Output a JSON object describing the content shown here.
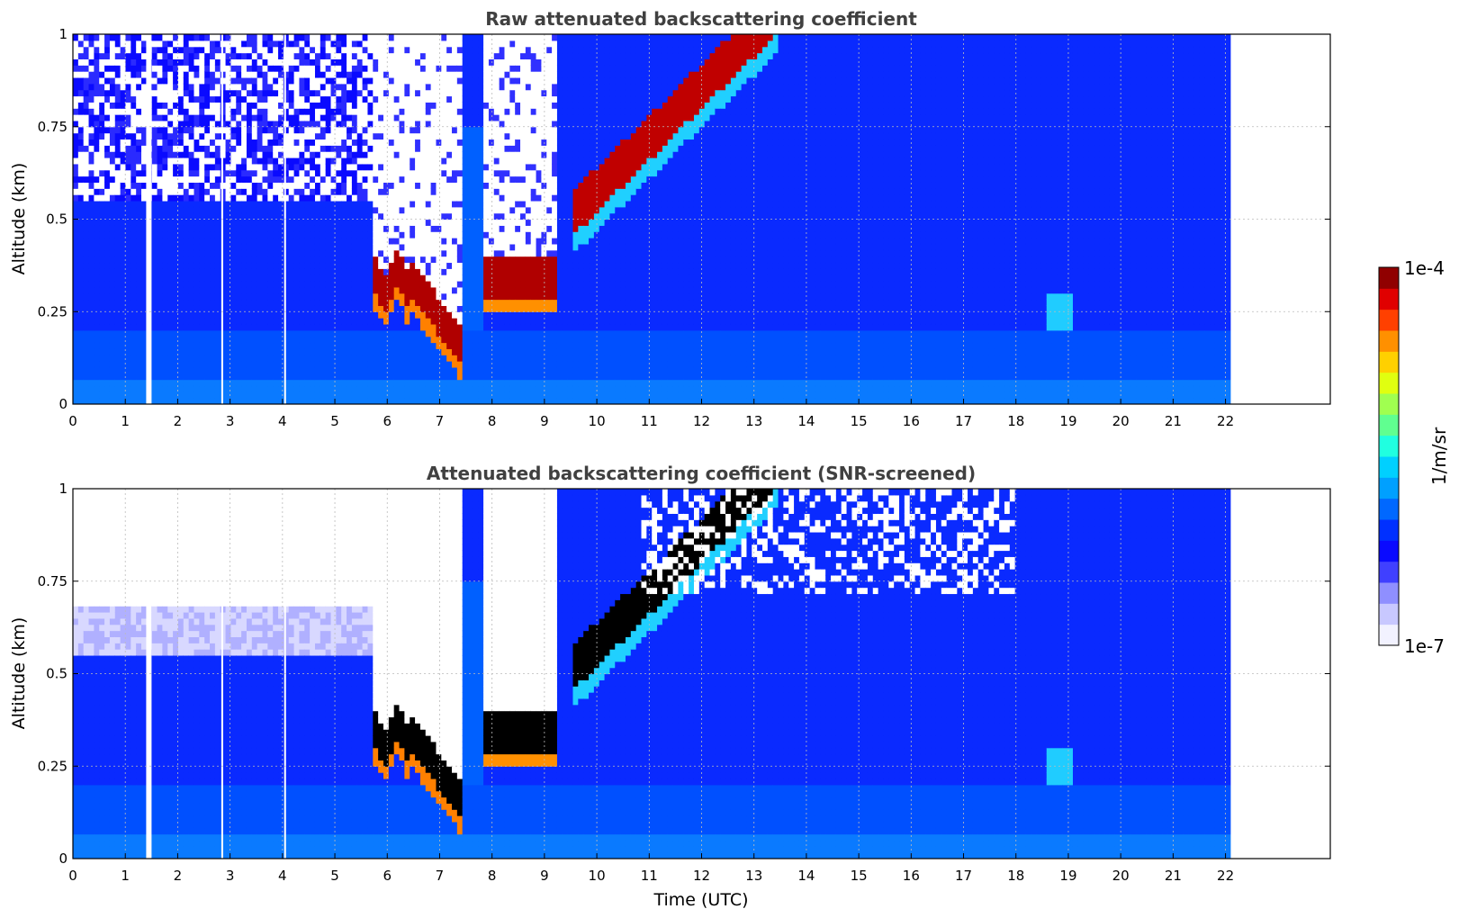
{
  "chart_data": [
    {
      "type": "heatmap",
      "title": "Raw attenuated backscattering coefficient",
      "xlabel": "",
      "ylabel": "Altitude (km)",
      "xlim": [
        0,
        24
      ],
      "ylim": [
        0,
        1
      ],
      "xticks": [
        "0",
        "1",
        "2",
        "3",
        "4",
        "5",
        "6",
        "7",
        "8",
        "9",
        "10",
        "11",
        "12",
        "13",
        "14",
        "15",
        "16",
        "17",
        "18",
        "19",
        "20",
        "21",
        "22"
      ],
      "yticks": [
        "0",
        "0.25",
        "0.5",
        "0.75",
        "1"
      ],
      "data_end_time": 22.1,
      "gaps_utc": [
        1.45,
        2.85,
        4.05
      ],
      "features": [
        {
          "name": "low cloud layer 1",
          "time_range": [
            5.75,
            7.4
          ],
          "altitude_km": [
            0.13,
            0.4
          ]
        },
        {
          "name": "low cloud layer 2",
          "time_range": [
            7.8,
            9.25
          ],
          "altitude_km": [
            0.28,
            0.38
          ]
        },
        {
          "name": "rising layer",
          "time_range": [
            9.5,
            13.5
          ],
          "altitude_km": [
            0.45,
            1.0
          ]
        }
      ],
      "grid": true
    },
    {
      "type": "heatmap",
      "title": "Attenuated backscattering coefficient (SNR-screened)",
      "xlabel": "Time (UTC)",
      "ylabel": "Altitude (km)",
      "xlim": [
        0,
        24
      ],
      "ylim": [
        0,
        1
      ],
      "xticks": [
        "0",
        "1",
        "2",
        "3",
        "4",
        "5",
        "6",
        "7",
        "8",
        "9",
        "10",
        "11",
        "12",
        "13",
        "14",
        "15",
        "16",
        "17",
        "18",
        "19",
        "20",
        "21",
        "22"
      ],
      "yticks": [
        "0",
        "0.25",
        "0.5",
        "0.75",
        "1"
      ],
      "data_end_time": 22.1,
      "grid": true
    }
  ],
  "colorbar": {
    "label": "1/m/sr",
    "max_label": "1e-4",
    "min_label": "1e-7",
    "colors": [
      "#f2f2ff",
      "#c8c8ff",
      "#8f8fff",
      "#4040ff",
      "#0a0aff",
      "#0030ff",
      "#0068ff",
      "#00a0ff",
      "#00d0ff",
      "#20ffe0",
      "#60ff90",
      "#a0ff50",
      "#e0ff10",
      "#ffd000",
      "#ff9000",
      "#ff4000",
      "#e00000",
      "#900000"
    ]
  }
}
